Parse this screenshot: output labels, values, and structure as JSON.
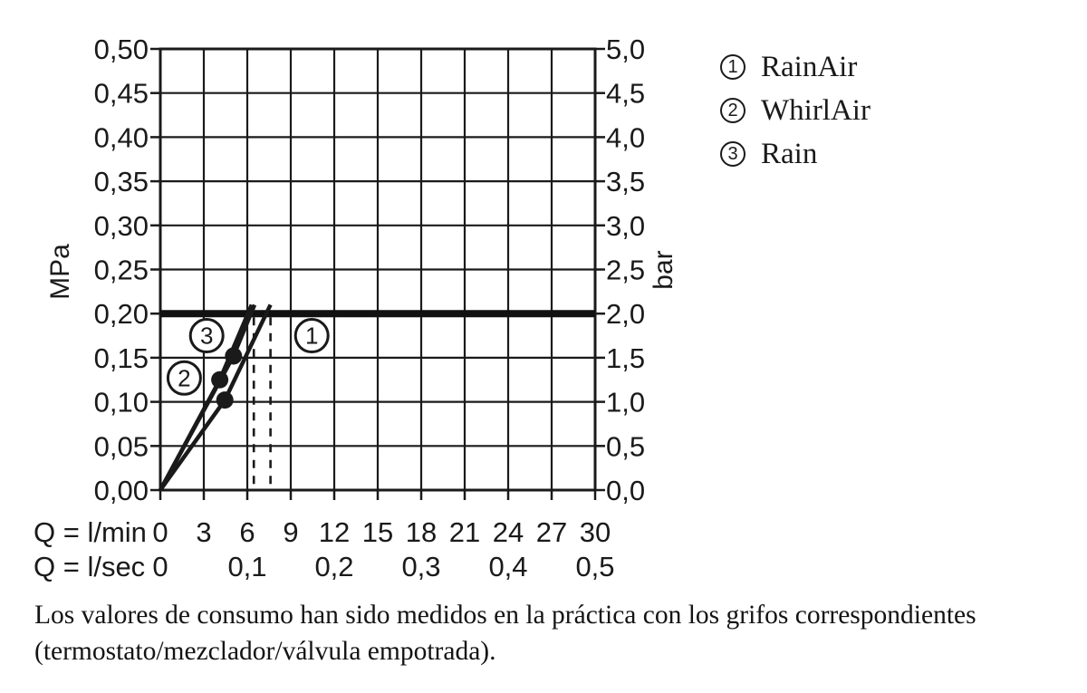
{
  "chart_data": {
    "type": "line",
    "title": "",
    "y_axis_left": {
      "unit": "MPa",
      "min": 0,
      "max": 0.5,
      "step": 0.05,
      "tick_labels": [
        "0,00",
        "0,05",
        "0,10",
        "0,15",
        "0,20",
        "0,25",
        "0,30",
        "0,35",
        "0,40",
        "0,45",
        "0,50"
      ]
    },
    "y_axis_right": {
      "unit": "bar",
      "min": 0,
      "max": 5,
      "step": 0.5,
      "tick_labels": [
        "0,0",
        "0,5",
        "1,0",
        "1,5",
        "2,0",
        "2,5",
        "3,0",
        "3,5",
        "4,0",
        "4,5",
        "5,0"
      ]
    },
    "x_axis": {
      "min": 0,
      "max": 30,
      "step": 3,
      "rows": [
        {
          "label": "Q = l/min",
          "ticks": [
            {
              "q": 0,
              "t": "0"
            },
            {
              "q": 3,
              "t": "3"
            },
            {
              "q": 6,
              "t": "6"
            },
            {
              "q": 9,
              "t": "9"
            },
            {
              "q": 12,
              "t": "12"
            },
            {
              "q": 15,
              "t": "15"
            },
            {
              "q": 18,
              "t": "18"
            },
            {
              "q": 21,
              "t": "21"
            },
            {
              "q": 24,
              "t": "24"
            },
            {
              "q": 27,
              "t": "27"
            },
            {
              "q": 30,
              "t": "30"
            }
          ]
        },
        {
          "label": "Q = l/sec",
          "ticks": [
            {
              "q": 0,
              "t": "0"
            },
            {
              "q": 6,
              "t": "0,1"
            },
            {
              "q": 12,
              "t": "0,2"
            },
            {
              "q": 18,
              "t": "0,3"
            },
            {
              "q": 24,
              "t": "0,4"
            },
            {
              "q": 30,
              "t": "0,5"
            }
          ]
        }
      ]
    },
    "grid": true,
    "pressure_limit_mpa": 0.2,
    "dashed_guides_lmin": [
      6.45,
      7.6
    ],
    "series": [
      {
        "number": "1",
        "name": "RainAir",
        "points_q_mpa": [
          [
            0,
            0
          ],
          [
            4.45,
            0.102
          ],
          [
            7.6,
            0.21
          ]
        ],
        "dot_q_mpa": [
          4.45,
          0.102
        ],
        "badge_q_mpa": [
          10.45,
          0.175
        ]
      },
      {
        "number": "2",
        "name": "WhirlAir",
        "points_q_mpa": [
          [
            0,
            0
          ],
          [
            4.1,
            0.125
          ],
          [
            6.3,
            0.21
          ]
        ],
        "dot_q_mpa": [
          4.1,
          0.125
        ],
        "badge_q_mpa": [
          1.65,
          0.127
        ]
      },
      {
        "number": "3",
        "name": "Rain",
        "points_q_mpa": [
          [
            0,
            0
          ],
          [
            5.05,
            0.152
          ],
          [
            6.5,
            0.21
          ]
        ],
        "dot_q_mpa": [
          5.05,
          0.152
        ],
        "badge_q_mpa": [
          3.2,
          0.175
        ]
      }
    ]
  },
  "legend": {
    "items": [
      {
        "number": "1",
        "label": "RainAir"
      },
      {
        "number": "2",
        "label": "WhirlAir"
      },
      {
        "number": "3",
        "label": "Rain"
      }
    ]
  },
  "caption": {
    "line1": "Los valores de consumo han sido medidos en la práctica con los grifos correspondientes",
    "line2": "(termostato/mezclador/válvula empotrada)."
  },
  "colors": {
    "ink": "#1a1a1a",
    "limit_line": "#111111",
    "background": "#ffffff"
  }
}
